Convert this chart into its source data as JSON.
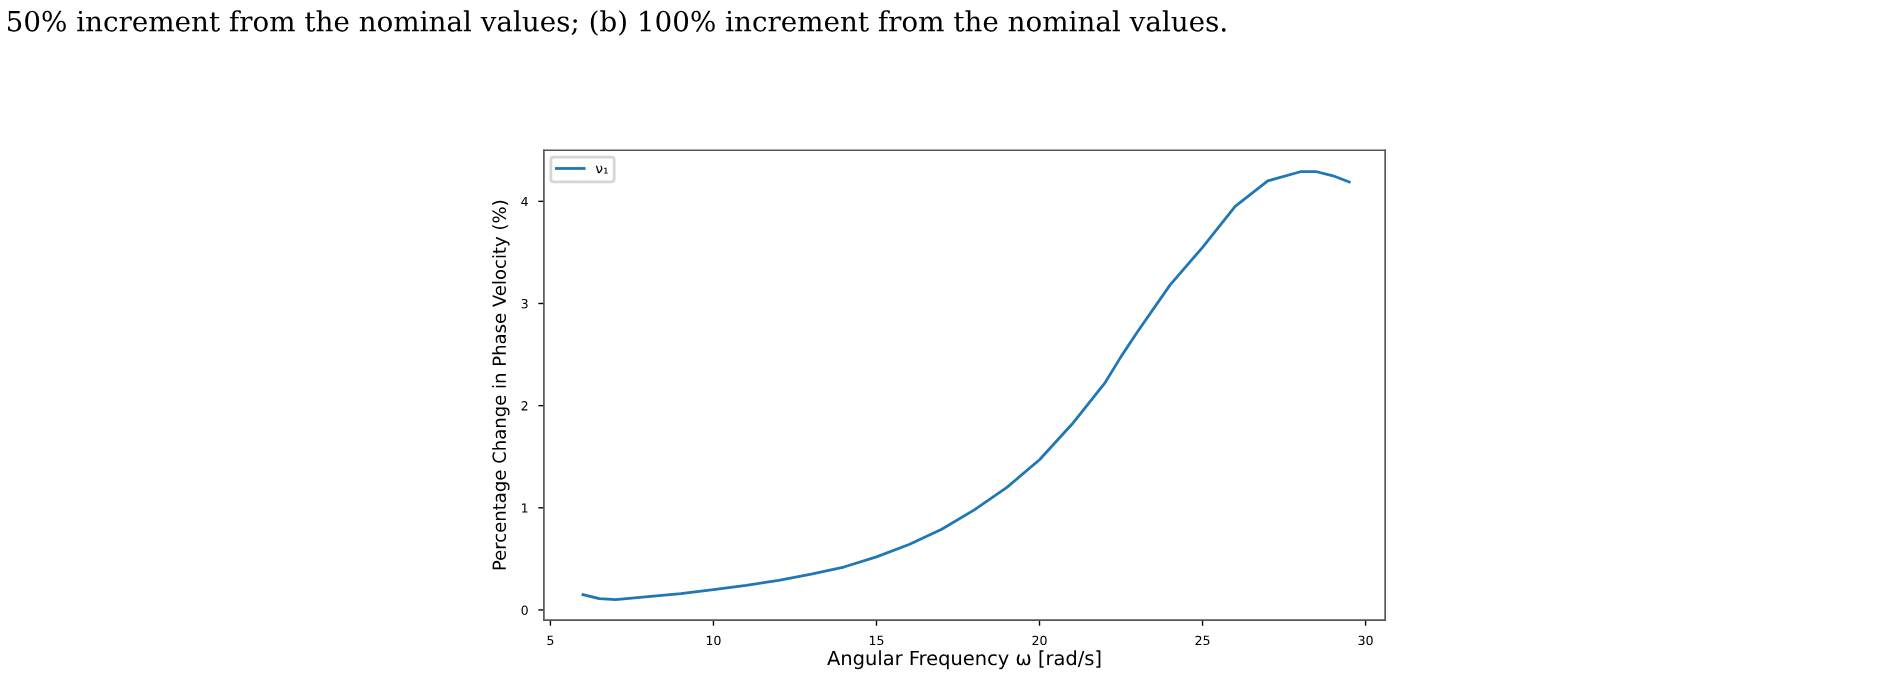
{
  "chart_data": {
    "type": "line",
    "xlabel": "Angular Frequency ω [rad/s]",
    "ylabel": "Percentage Change in Phase Velocity (%)",
    "annotations": [
      "50% increment from the nominal values; (b) 100% increment from the nominal values."
    ],
    "x": [
      6,
      6.5,
      7,
      8,
      9,
      10,
      11,
      12,
      13,
      14,
      15,
      16,
      17,
      18,
      19,
      20,
      21,
      22,
      22.5,
      23,
      24,
      25,
      26,
      27,
      28,
      28.5,
      29,
      29.5
    ],
    "series": [
      {
        "name": "ν₁",
        "color": "#1f77b4",
        "values": [
          0.15,
          0.11,
          0.1,
          0.13,
          0.16,
          0.2,
          0.24,
          0.29,
          0.35,
          0.42,
          0.52,
          0.64,
          0.79,
          0.98,
          1.2,
          1.47,
          1.82,
          2.22,
          2.48,
          2.72,
          3.18,
          3.55,
          3.95,
          4.2,
          4.29,
          4.29,
          4.25,
          4.19
        ]
      }
    ],
    "xlim": [
      4.8,
      30.6
    ],
    "ylim": [
      -0.1,
      4.5
    ],
    "xticks": [
      5,
      10,
      15,
      20,
      25,
      30
    ],
    "yticks": [
      0,
      1,
      2,
      3,
      4
    ],
    "grid": false,
    "legend": "top left",
    "marker": "none",
    "line_style": "solid"
  }
}
